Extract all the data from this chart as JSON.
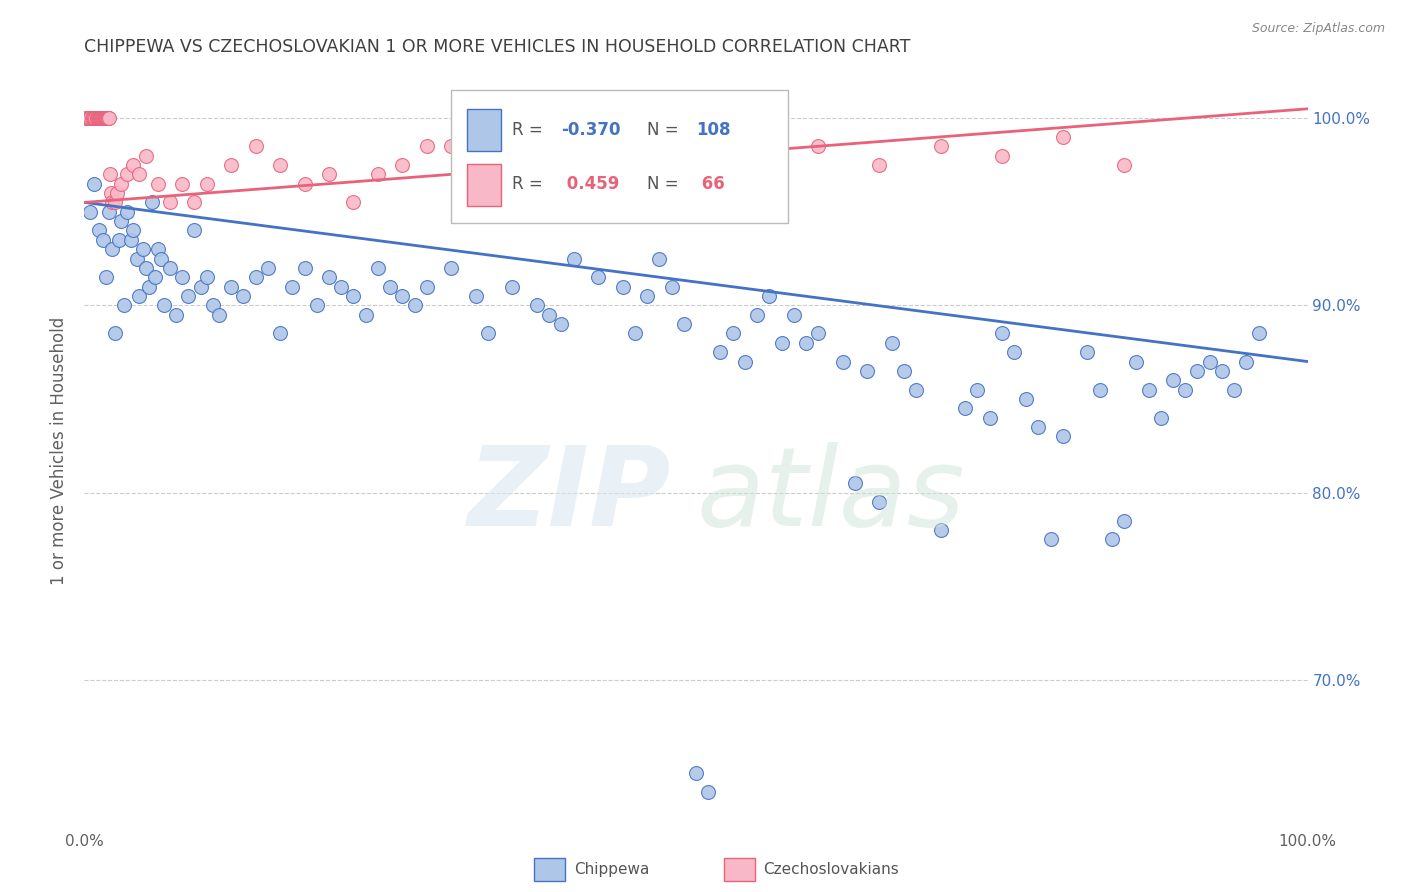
{
  "title": "CHIPPEWA VS CZECHOSLOVAKIAN 1 OR MORE VEHICLES IN HOUSEHOLD CORRELATION CHART",
  "source": "Source: ZipAtlas.com",
  "ylabel": "1 or more Vehicles in Household",
  "legend_blue": {
    "R": -0.37,
    "N": 108,
    "label": "Chippewa"
  },
  "legend_pink": {
    "R": 0.459,
    "N": 66,
    "label": "Czechoslovakians"
  },
  "blue_color": "#aec6e8",
  "pink_color": "#f9b8c8",
  "blue_line_color": "#4472c4",
  "pink_line_color": "#e8627a",
  "xlim": [
    0.0,
    100.0
  ],
  "ylim": [
    62.0,
    102.5
  ],
  "blue_trend_x": [
    0.0,
    100.0
  ],
  "blue_trend_y": [
    95.5,
    87.0
  ],
  "pink_trend_x": [
    0.0,
    100.0
  ],
  "pink_trend_y": [
    95.5,
    100.5
  ],
  "blue_scatter_x": [
    0.5,
    0.8,
    1.2,
    1.5,
    1.8,
    2.0,
    2.3,
    2.5,
    2.8,
    3.0,
    3.2,
    3.5,
    3.8,
    4.0,
    4.3,
    4.5,
    4.8,
    5.0,
    5.3,
    5.5,
    5.8,
    6.0,
    6.3,
    6.5,
    7.0,
    7.5,
    8.0,
    8.5,
    9.0,
    9.5,
    10.0,
    10.5,
    11.0,
    12.0,
    13.0,
    14.0,
    15.0,
    16.0,
    17.0,
    18.0,
    19.0,
    20.0,
    21.0,
    22.0,
    23.0,
    24.0,
    25.0,
    26.0,
    27.0,
    28.0,
    30.0,
    32.0,
    33.0,
    35.0,
    37.0,
    38.0,
    39.0,
    40.0,
    42.0,
    44.0,
    45.0,
    46.0,
    47.0,
    48.0,
    49.0,
    50.0,
    51.0,
    52.0,
    53.0,
    54.0,
    55.0,
    56.0,
    57.0,
    58.0,
    59.0,
    60.0,
    62.0,
    63.0,
    64.0,
    65.0,
    66.0,
    67.0,
    68.0,
    70.0,
    72.0,
    73.0,
    74.0,
    75.0,
    76.0,
    77.0,
    78.0,
    79.0,
    80.0,
    82.0,
    83.0,
    84.0,
    85.0,
    86.0,
    87.0,
    88.0,
    89.0,
    90.0,
    91.0,
    92.0,
    93.0,
    94.0,
    95.0,
    96.0
  ],
  "blue_scatter_y": [
    95.0,
    96.5,
    94.0,
    93.5,
    91.5,
    95.0,
    93.0,
    88.5,
    93.5,
    94.5,
    90.0,
    95.0,
    93.5,
    94.0,
    92.5,
    90.5,
    93.0,
    92.0,
    91.0,
    95.5,
    91.5,
    93.0,
    92.5,
    90.0,
    92.0,
    89.5,
    91.5,
    90.5,
    94.0,
    91.0,
    91.5,
    90.0,
    89.5,
    91.0,
    90.5,
    91.5,
    92.0,
    88.5,
    91.0,
    92.0,
    90.0,
    91.5,
    91.0,
    90.5,
    89.5,
    92.0,
    91.0,
    90.5,
    90.0,
    91.0,
    92.0,
    90.5,
    88.5,
    91.0,
    90.0,
    89.5,
    89.0,
    92.5,
    91.5,
    91.0,
    88.5,
    90.5,
    92.5,
    91.0,
    89.0,
    65.0,
    64.0,
    87.5,
    88.5,
    87.0,
    89.5,
    90.5,
    88.0,
    89.5,
    88.0,
    88.5,
    87.0,
    80.5,
    86.5,
    79.5,
    88.0,
    86.5,
    85.5,
    78.0,
    84.5,
    85.5,
    84.0,
    88.5,
    87.5,
    85.0,
    83.5,
    77.5,
    83.0,
    87.5,
    85.5,
    77.5,
    78.5,
    87.0,
    85.5,
    84.0,
    86.0,
    85.5,
    86.5,
    87.0,
    86.5,
    85.5,
    87.0,
    88.5
  ],
  "pink_scatter_x": [
    0.1,
    0.2,
    0.3,
    0.4,
    0.5,
    0.6,
    0.7,
    0.8,
    0.9,
    1.0,
    1.05,
    1.1,
    1.15,
    1.2,
    1.25,
    1.3,
    1.35,
    1.4,
    1.45,
    1.5,
    1.55,
    1.6,
    1.65,
    1.7,
    1.75,
    1.8,
    1.85,
    1.9,
    1.95,
    2.0,
    2.1,
    2.2,
    2.3,
    2.5,
    2.7,
    3.0,
    3.5,
    4.0,
    4.5,
    5.0,
    6.0,
    7.0,
    8.0,
    9.0,
    10.0,
    12.0,
    14.0,
    16.0,
    18.0,
    20.0,
    22.0,
    24.0,
    26.0,
    28.0,
    30.0,
    35.0,
    40.0,
    45.0,
    50.0,
    55.0,
    60.0,
    65.0,
    70.0,
    75.0,
    80.0,
    85.0
  ],
  "pink_scatter_y": [
    100.0,
    100.0,
    100.0,
    100.0,
    100.0,
    100.0,
    100.0,
    100.0,
    100.0,
    100.0,
    100.0,
    100.0,
    100.0,
    100.0,
    100.0,
    100.0,
    100.0,
    100.0,
    100.0,
    100.0,
    100.0,
    100.0,
    100.0,
    100.0,
    100.0,
    100.0,
    100.0,
    100.0,
    100.0,
    100.0,
    97.0,
    96.0,
    95.5,
    95.5,
    96.0,
    96.5,
    97.0,
    97.5,
    97.0,
    98.0,
    96.5,
    95.5,
    96.5,
    95.5,
    96.5,
    97.5,
    98.5,
    97.5,
    96.5,
    97.0,
    95.5,
    97.0,
    97.5,
    98.5,
    98.5,
    97.5,
    98.5,
    99.0,
    98.5,
    98.0,
    98.5,
    97.5,
    98.5,
    98.0,
    99.0,
    97.5
  ],
  "background_color": "#ffffff",
  "grid_color": "#cccccc",
  "title_color": "#404040",
  "axis_label_color": "#606060",
  "right_tick_color": "#4472c4"
}
